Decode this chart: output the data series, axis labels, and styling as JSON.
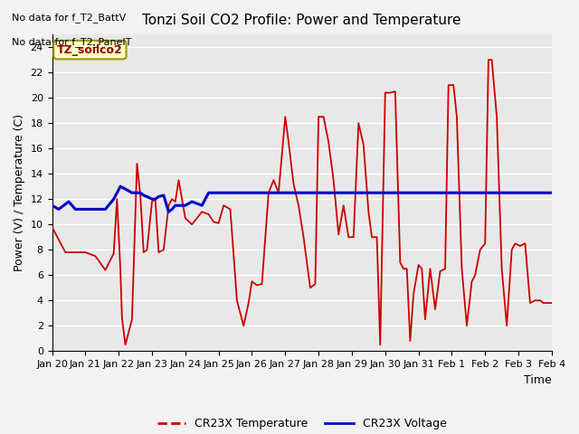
{
  "title": "Tonzi Soil CO2 Profile: Power and Temperature",
  "ylabel": "Power (V) / Temperature (C)",
  "xlabel": "Time",
  "annotation1": "No data for f_T2_BattV",
  "annotation2": "No data for f_T2_PanelT",
  "legend_box_label": "TZ_soilco2",
  "ylim": [
    0,
    25
  ],
  "yticks": [
    0,
    2,
    4,
    6,
    8,
    10,
    12,
    14,
    16,
    18,
    20,
    22,
    24
  ],
  "bg_color": "#e8e8e8",
  "plot_bg_color": "#e8e8e8",
  "fig_bg_color": "#f2f2f2",
  "grid_color": "#ffffff",
  "temp_color": "#cc0000",
  "volt_color": "#0000cc",
  "legend_temp": "CR23X Temperature",
  "legend_volt": "CR23X Voltage",
  "temp_x": [
    0.0,
    0.4,
    0.7,
    1.0,
    1.3,
    1.6,
    1.85,
    1.95,
    2.05,
    2.1,
    2.2,
    2.4,
    2.55,
    2.65,
    2.75,
    2.85,
    3.0,
    3.1,
    3.2,
    3.35,
    3.5,
    3.6,
    3.7,
    3.8,
    4.0,
    4.2,
    4.5,
    4.7,
    4.85,
    5.0,
    5.15,
    5.35,
    5.55,
    5.75,
    5.9,
    6.0,
    6.15,
    6.3,
    6.5,
    6.65,
    6.8,
    7.0,
    7.1,
    7.25,
    7.4,
    7.55,
    7.75,
    7.9,
    8.0,
    8.15,
    8.3,
    8.45,
    8.6,
    8.75,
    8.9,
    9.05,
    9.2,
    9.35,
    9.5,
    9.6,
    9.75,
    9.85,
    10.0,
    10.15,
    10.3,
    10.45,
    10.55,
    10.65,
    10.75,
    10.85,
    11.0,
    11.1,
    11.2,
    11.35,
    11.5,
    11.65,
    11.8,
    11.9,
    12.05,
    12.15,
    12.3,
    12.45,
    12.6,
    12.7,
    12.85,
    13.0,
    13.1,
    13.2,
    13.35,
    13.5,
    13.65,
    13.8,
    13.9,
    14.05,
    14.2,
    14.35,
    14.5,
    14.65,
    14.75,
    14.85,
    15.0
  ],
  "temp_y": [
    9.8,
    7.8,
    7.8,
    7.8,
    7.5,
    6.4,
    7.7,
    12.0,
    6.5,
    2.6,
    0.5,
    2.5,
    14.8,
    12.3,
    7.8,
    8.0,
    11.8,
    12.0,
    7.8,
    8.0,
    11.5,
    12.0,
    11.8,
    13.5,
    10.5,
    10.0,
    11.0,
    10.8,
    10.2,
    10.1,
    11.5,
    11.2,
    4.0,
    2.0,
    3.8,
    5.5,
    5.2,
    5.3,
    12.5,
    13.5,
    12.5,
    18.5,
    16.5,
    13.2,
    11.5,
    9.0,
    5.0,
    5.3,
    18.5,
    18.5,
    16.5,
    13.5,
    9.2,
    11.5,
    9.0,
    9.0,
    18.0,
    16.3,
    11.0,
    9.0,
    9.0,
    0.5,
    20.4,
    20.4,
    20.5,
    7.0,
    6.5,
    6.5,
    0.8,
    4.5,
    6.8,
    6.5,
    2.5,
    6.5,
    3.3,
    6.3,
    6.5,
    21.0,
    21.0,
    18.5,
    6.5,
    2.0,
    5.5,
    6.0,
    8.0,
    8.5,
    23.0,
    23.0,
    18.5,
    6.5,
    2.0,
    8.0,
    8.5,
    8.3,
    8.5,
    3.8,
    4.0,
    4.0,
    3.8,
    3.8,
    3.8
  ],
  "volt_x": [
    0.0,
    0.2,
    0.35,
    0.5,
    0.7,
    1.0,
    1.3,
    1.6,
    1.85,
    2.05,
    2.2,
    2.4,
    2.55,
    2.65,
    2.75,
    2.85,
    3.0,
    3.1,
    3.2,
    3.35,
    3.5,
    3.6,
    3.7,
    3.8,
    4.0,
    4.2,
    4.5,
    4.7,
    5.0,
    5.2,
    5.5,
    6.0,
    6.5,
    7.0,
    7.5,
    8.0,
    8.5,
    9.0,
    9.5,
    10.0,
    10.5,
    11.0,
    11.5,
    12.0,
    12.5,
    13.0,
    13.5,
    14.0,
    14.5,
    15.0
  ],
  "volt_y": [
    11.5,
    11.2,
    11.5,
    11.8,
    11.2,
    11.2,
    11.2,
    11.2,
    12.0,
    13.0,
    12.8,
    12.5,
    12.5,
    12.5,
    12.3,
    12.2,
    12.0,
    12.0,
    12.2,
    12.3,
    11.0,
    11.2,
    11.5,
    11.5,
    11.5,
    11.8,
    11.5,
    12.5,
    12.5,
    12.5,
    12.5,
    12.5,
    12.5,
    12.5,
    12.5,
    12.5,
    12.5,
    12.5,
    12.5,
    12.5,
    12.5,
    12.5,
    12.5,
    12.5,
    12.5,
    12.5,
    12.5,
    12.5,
    12.5,
    12.5
  ],
  "xtick_labels": [
    "Jan 20",
    "Jan 21",
    "Jan 22",
    "Jan 23",
    "Jan 24",
    "Jan 25",
    "Jan 26",
    "Jan 27",
    "Jan 28",
    "Jan 29",
    "Jan 30",
    "Jan 31",
    "Feb 1",
    "Feb 2",
    "Feb 3",
    "Feb 4"
  ],
  "xtick_positions": [
    0,
    1,
    2,
    3,
    4,
    5,
    6,
    7,
    8,
    9,
    10,
    11,
    12,
    13,
    14,
    15
  ],
  "title_fontsize": 11,
  "label_fontsize": 9,
  "tick_fontsize": 8
}
